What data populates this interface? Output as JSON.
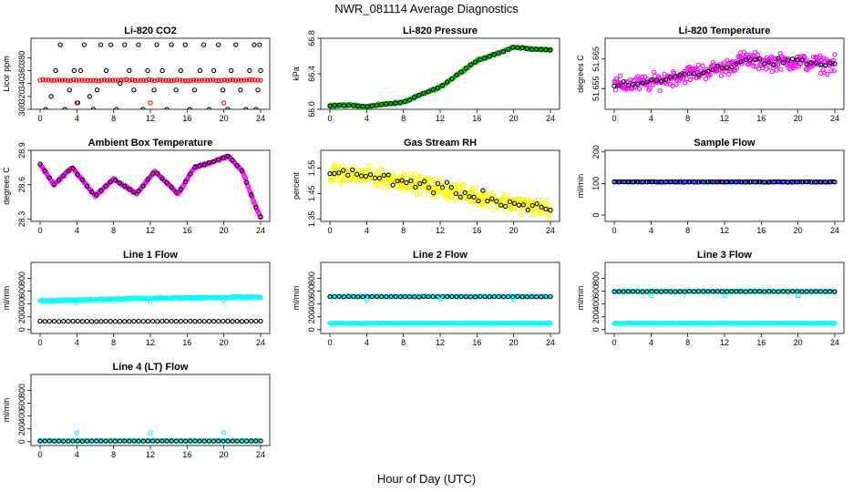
{
  "figure": {
    "title": "NWR_081114  Average Diagnostics",
    "xlabel": "Hour of Day (UTC)"
  },
  "chart_data": [
    {
      "type": "scatter",
      "title": "Li-820 CO2",
      "ylabel": "Licor ppm",
      "xlim": [
        0,
        24
      ],
      "ylim": [
        300,
        410
      ],
      "xticks": [
        "0",
        "4",
        "8",
        "12",
        "16",
        "20",
        "24"
      ],
      "yticks": [
        "300",
        "320",
        "340",
        "360",
        "380"
      ],
      "series": [
        {
          "name": "all",
          "color": "#ff0000",
          "pattern": "band",
          "value": 345,
          "spread": 1.5,
          "density": 80
        },
        {
          "name": "hourly",
          "color": "#000000",
          "points": [
            [
              0.6,
              300
            ],
            [
              1.2,
              320
            ],
            [
              1.7,
              360
            ],
            [
              2.2,
              400
            ],
            [
              2.7,
              300
            ],
            [
              3.2,
              330
            ],
            [
              3.7,
              360
            ],
            [
              4.1,
              310
            ],
            [
              4.4,
              360
            ],
            [
              4.8,
              400
            ],
            [
              5.4,
              320
            ],
            [
              5.8,
              300
            ],
            [
              6.2,
              330
            ],
            [
              6.6,
              400
            ],
            [
              7.2,
              360
            ],
            [
              7.7,
              400
            ],
            [
              8.3,
              300
            ],
            [
              8.7,
              340
            ],
            [
              9.2,
              400
            ],
            [
              9.7,
              360
            ],
            [
              10.2,
              330
            ],
            [
              10.7,
              400
            ],
            [
              11.2,
              300
            ],
            [
              11.7,
              360
            ],
            [
              12.4,
              330
            ],
            [
              12.7,
              400
            ],
            [
              13.3,
              360
            ],
            [
              13.8,
              300
            ],
            [
              14.3,
              400
            ],
            [
              14.8,
              330
            ],
            [
              15.3,
              360
            ],
            [
              15.8,
              400
            ],
            [
              16.3,
              300
            ],
            [
              16.8,
              330
            ],
            [
              17.4,
              360
            ],
            [
              17.8,
              400
            ],
            [
              18.4,
              300
            ],
            [
              18.9,
              360
            ],
            [
              19.4,
              400
            ],
            [
              19.9,
              330
            ],
            [
              20.4,
              300
            ],
            [
              20.8,
              360
            ],
            [
              21.3,
              400
            ],
            [
              21.8,
              330
            ],
            [
              22.4,
              300
            ],
            [
              22.8,
              360
            ],
            [
              23.3,
              400
            ],
            [
              23.7,
              330
            ],
            [
              24.0,
              360
            ],
            [
              23.9,
              400
            ],
            [
              23.5,
              300
            ]
          ]
        },
        {
          "name": "flagged",
          "color": "#ff0000",
          "points": [
            [
              4.0,
              310
            ],
            [
              12.0,
              310
            ],
            [
              20.0,
              310
            ]
          ]
        }
      ]
    },
    {
      "type": "scatter",
      "title": "Li-820 Pressure",
      "ylabel": "kPa",
      "xlim": [
        0,
        24
      ],
      "ylim": [
        66.0,
        66.8
      ],
      "xticks": [
        "0",
        "4",
        "8",
        "12",
        "16",
        "20",
        "24"
      ],
      "yticks": [
        "66.0",
        "66.4",
        "66.8"
      ],
      "series": [
        {
          "name": "all",
          "color": "#00cc00",
          "pattern": "curve",
          "spread": 0.015,
          "density": 300
        },
        {
          "name": "hourly",
          "color": "#000000",
          "pattern": "curve",
          "spread": 0.008,
          "density": 48
        }
      ],
      "curve": [
        [
          0,
          66.04
        ],
        [
          2,
          66.05
        ],
        [
          4,
          66.03
        ],
        [
          6,
          66.06
        ],
        [
          8,
          66.08
        ],
        [
          10,
          66.17
        ],
        [
          12,
          66.25
        ],
        [
          14,
          66.4
        ],
        [
          16,
          66.55
        ],
        [
          18,
          66.62
        ],
        [
          20,
          66.7
        ],
        [
          22,
          66.68
        ],
        [
          24,
          66.67
        ]
      ]
    },
    {
      "type": "scatter",
      "title": "Li-820 Temperature",
      "ylabel": "degrees C",
      "xlim": [
        0,
        24
      ],
      "ylim": [
        51.648,
        51.672
      ],
      "xticks": [
        "0",
        "4",
        "8",
        "12",
        "16",
        "20",
        "24"
      ],
      "yticks": [
        "51.655",
        "51.665"
      ],
      "series": [
        {
          "name": "all",
          "color": "#ff00ff",
          "pattern": "curve",
          "spread": 0.004,
          "density": 300
        },
        {
          "name": "hourly",
          "color": "#000000",
          "pattern": "curve",
          "spread": 0.002,
          "density": 48
        }
      ],
      "curve": [
        [
          0,
          51.656
        ],
        [
          4,
          51.657
        ],
        [
          8,
          51.66
        ],
        [
          12,
          51.662
        ],
        [
          14,
          51.665
        ],
        [
          16,
          51.664
        ],
        [
          20,
          51.664
        ],
        [
          24,
          51.663
        ]
      ]
    },
    {
      "type": "scatter",
      "title": "Ambient Box Temperature",
      "ylabel": "degrees C",
      "xlim": [
        0,
        24
      ],
      "ylim": [
        28.28,
        28.9
      ],
      "xticks": [
        "0",
        "4",
        "8",
        "12",
        "16",
        "20",
        "24"
      ],
      "yticks": [
        "28.3",
        "28.6",
        "28.9"
      ],
      "series": [
        {
          "name": "all",
          "color": "#ff00ff",
          "pattern": "curve",
          "spread": 0.012,
          "density": 320
        },
        {
          "name": "hourly",
          "color": "#000000",
          "pattern": "curve",
          "spread": 0.006,
          "density": 48
        }
      ],
      "curve": [
        [
          0,
          28.78
        ],
        [
          1.5,
          28.6
        ],
        [
          3.5,
          28.75
        ],
        [
          6,
          28.5
        ],
        [
          8,
          28.65
        ],
        [
          10.5,
          28.52
        ],
        [
          12.5,
          28.72
        ],
        [
          15,
          28.52
        ],
        [
          16.8,
          28.75
        ],
        [
          19.5,
          28.82
        ],
        [
          20.5,
          28.85
        ],
        [
          22,
          28.72
        ],
        [
          23.5,
          28.4
        ],
        [
          24,
          28.32
        ]
      ]
    },
    {
      "type": "scatter",
      "title": "Gas Stream RH",
      "ylabel": "percent",
      "xlim": [
        0,
        24
      ],
      "ylim": [
        1.34,
        1.62
      ],
      "xticks": [
        "0",
        "4",
        "8",
        "12",
        "16",
        "20",
        "24"
      ],
      "yticks": [
        "1.35",
        "1.45",
        "1.55"
      ],
      "series": [
        {
          "name": "all",
          "color": "#ffff00",
          "pattern": "curve",
          "spread": 0.05,
          "density": 420
        },
        {
          "name": "hourly",
          "color": "#000000",
          "pattern": "curve",
          "spread": 0.035,
          "density": 50
        }
      ],
      "curve": [
        [
          0,
          1.53
        ],
        [
          4,
          1.52
        ],
        [
          8,
          1.5
        ],
        [
          12,
          1.47
        ],
        [
          16,
          1.44
        ],
        [
          20,
          1.41
        ],
        [
          24,
          1.39
        ]
      ]
    },
    {
      "type": "scatter",
      "title": "Sample Flow",
      "ylabel": "ml/min",
      "xlim": [
        0,
        24
      ],
      "ylim": [
        -20,
        205
      ],
      "xticks": [
        "0",
        "4",
        "8",
        "12",
        "16",
        "20",
        "24"
      ],
      "yticks": [
        "0",
        "100",
        "200"
      ],
      "series": [
        {
          "name": "all",
          "color": "#0000ff",
          "pattern": "band",
          "value": 105,
          "spread": 1.5,
          "density": 120
        },
        {
          "name": "hourly",
          "color": "#000000",
          "pattern": "band",
          "value": 105,
          "spread": 1,
          "density": 48
        }
      ]
    },
    {
      "type": "scatter",
      "title": "Line 1 Flow",
      "ylabel": "ml/min",
      "xlim": [
        0,
        24
      ],
      "ylim": [
        -60,
        1050
      ],
      "xticks": [
        "0",
        "4",
        "8",
        "12",
        "16",
        "20",
        "24"
      ],
      "yticks": [
        "0",
        "200",
        "400",
        "600",
        "800"
      ],
      "series": [
        {
          "name": "all",
          "color": "#00ffff",
          "pattern": "curve",
          "spread": 12,
          "density": 300
        },
        {
          "name": "hourly",
          "color": "#000000",
          "pattern": "band",
          "value": 130,
          "spread": 4,
          "density": 48
        },
        {
          "name": "spikes",
          "color": "#00ffff",
          "points": [
            [
              4.0,
              420
            ],
            [
              12.0,
              440
            ],
            [
              20.0,
              450
            ]
          ]
        }
      ],
      "curve": [
        [
          0,
          450
        ],
        [
          8,
          480
        ],
        [
          16,
          500
        ],
        [
          24,
          510
        ]
      ]
    },
    {
      "type": "scatter",
      "title": "Line 2 Flow",
      "ylabel": "ml/min",
      "xlim": [
        0,
        24
      ],
      "ylim": [
        -60,
        1050
      ],
      "xticks": [
        "0",
        "4",
        "8",
        "12",
        "16",
        "20",
        "24"
      ],
      "yticks": [
        "0",
        "200",
        "400",
        "600",
        "800"
      ],
      "series": [
        {
          "name": "all",
          "color": "#00ffff",
          "pattern": "band",
          "value": 520,
          "spread": 6,
          "density": 220
        },
        {
          "name": "all-low",
          "color": "#00ffff",
          "pattern": "band",
          "value": 100,
          "spread": 4,
          "density": 220
        },
        {
          "name": "hourly",
          "color": "#000000",
          "pattern": "band",
          "value": 515,
          "spread": 5,
          "density": 48
        },
        {
          "name": "spikes",
          "color": "#00ffff",
          "points": [
            [
              4.0,
              460
            ],
            [
              12.0,
              470
            ],
            [
              20.0,
              470
            ]
          ]
        }
      ]
    },
    {
      "type": "scatter",
      "title": "Line 3 Flow",
      "ylabel": "ml/min",
      "xlim": [
        0,
        24
      ],
      "ylim": [
        -60,
        1050
      ],
      "xticks": [
        "0",
        "4",
        "8",
        "12",
        "16",
        "20",
        "24"
      ],
      "yticks": [
        "0",
        "200",
        "400",
        "600",
        "800"
      ],
      "series": [
        {
          "name": "all",
          "color": "#00ffff",
          "pattern": "band",
          "value": 600,
          "spread": 6,
          "density": 220
        },
        {
          "name": "all-low",
          "color": "#00ffff",
          "pattern": "band",
          "value": 100,
          "spread": 4,
          "density": 220
        },
        {
          "name": "hourly",
          "color": "#000000",
          "pattern": "band",
          "value": 595,
          "spread": 6,
          "density": 48
        },
        {
          "name": "spikes",
          "color": "#00ffff",
          "points": [
            [
              4.0,
              530
            ],
            [
              12.0,
              530
            ],
            [
              20.0,
              530
            ]
          ]
        }
      ]
    },
    {
      "type": "scatter",
      "title": "Line 4 (LT) Flow",
      "ylabel": "ml/min",
      "xlim": [
        0,
        24
      ],
      "ylim": [
        -60,
        1050
      ],
      "xticks": [
        "0",
        "4",
        "8",
        "12",
        "16",
        "20",
        "24"
      ],
      "yticks": [
        "0",
        "200",
        "400",
        "600",
        "800"
      ],
      "series": [
        {
          "name": "all",
          "color": "#00ffff",
          "pattern": "band",
          "value": 15,
          "spread": 3,
          "density": 220
        },
        {
          "name": "hourly",
          "color": "#000000",
          "pattern": "band",
          "value": 10,
          "spread": 3,
          "density": 48
        },
        {
          "name": "spikes",
          "color": "#00ffff",
          "points": [
            [
              4.0,
              140
            ],
            [
              12.0,
              140
            ],
            [
              20.0,
              140
            ]
          ]
        }
      ]
    }
  ]
}
